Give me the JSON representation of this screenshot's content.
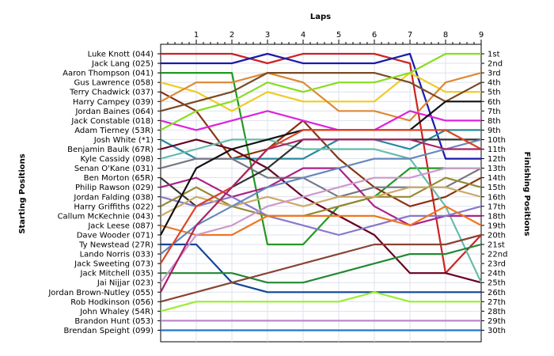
{
  "chart_data": {
    "type": "line",
    "title": "",
    "xlabel": "Laps",
    "ylabel_left": "Starting Positions",
    "ylabel_right": "Finishing Positions",
    "x": [
      0,
      1,
      2,
      3,
      4,
      5,
      6,
      7,
      8,
      9
    ],
    "x_tick_labels": [
      "1",
      "2",
      "3",
      "4",
      "5",
      "6",
      "7",
      "8",
      "9"
    ],
    "finishing_labels": [
      "1st",
      "2nd",
      "3rd",
      "4th",
      "5th",
      "6th",
      "7th",
      "8th",
      "9th",
      "10th",
      "11th",
      "12th",
      "13th",
      "14th",
      "15th",
      "16th",
      "17th",
      "18th",
      "19th",
      "20th",
      "21st",
      "22nd",
      "23rd",
      "24th",
      "25th",
      "26th",
      "27th",
      "28th",
      "29th",
      "30th"
    ],
    "grid": true,
    "series": [
      {
        "name": "Luke Knott (044)",
        "color": "#cc2222",
        "positions": [
          1,
          1,
          1,
          2,
          1,
          1,
          1,
          2,
          24,
          20
        ]
      },
      {
        "name": "Jack Lang (025)",
        "color": "#1a1aaa",
        "positions": [
          2,
          2,
          2,
          1,
          2,
          2,
          2,
          1,
          12,
          12
        ]
      },
      {
        "name": "Aaron Thompson (041)",
        "color": "#229922",
        "positions": [
          3,
          3,
          3,
          21,
          21,
          17,
          16,
          13,
          13,
          13
        ]
      },
      {
        "name": "Gus Lawrence (058)",
        "color": "#eecc22",
        "positions": [
          4,
          5,
          7,
          5,
          6,
          6,
          6,
          3,
          5,
          5
        ]
      },
      {
        "name": "Terry Chadwick (037)",
        "color": "#883311",
        "positions": [
          5,
          7,
          12,
          11,
          8,
          12,
          15,
          17,
          16,
          14
        ]
      },
      {
        "name": "Harry Campey (039)",
        "color": "#dd8833",
        "positions": [
          6,
          4,
          4,
          3,
          4,
          7,
          7,
          8,
          4,
          3
        ]
      },
      {
        "name": "Jordan Baines (064)",
        "color": "#7a4a22",
        "positions": [
          7,
          6,
          5,
          3,
          3,
          3,
          3,
          4,
          6,
          4
        ]
      },
      {
        "name": "Jack Constable (018)",
        "color": "#dd22dd",
        "positions": [
          8,
          9,
          8,
          7,
          8,
          9,
          9,
          7,
          8,
          8
        ]
      },
      {
        "name": "Adam Tierney (53R)",
        "color": "#88dd22",
        "positions": [
          9,
          7,
          6,
          4,
          5,
          4,
          4,
          3,
          1,
          1
        ]
      },
      {
        "name": "Josh White (*1)",
        "color": "#2a8aa0",
        "positions": [
          10,
          12,
          12,
          12,
          12,
          10,
          10,
          11,
          9,
          9
        ]
      },
      {
        "name": "Benjamin Baulk (67R)",
        "color": "#660022",
        "positions": [
          11,
          10,
          11,
          13,
          16,
          18,
          20,
          24,
          24,
          25
        ]
      },
      {
        "name": "Kyle Cassidy (098)",
        "color": "#66bbaa",
        "positions": [
          12,
          11,
          10,
          10,
          11,
          11,
          11,
          12,
          17,
          25
        ]
      },
      {
        "name": "Senan O'Kane (031)",
        "color": "#777788",
        "positions": [
          13,
          12,
          12,
          14,
          14,
          16,
          15,
          15,
          15,
          13
        ]
      },
      {
        "name": "Ben Morton (65R)",
        "color": "#333333",
        "positions": [
          14,
          17,
          15,
          13,
          10,
          10,
          10,
          10,
          10,
          10
        ]
      },
      {
        "name": "Philip Rawson (029)",
        "color": "#aa2288",
        "positions": [
          15,
          14,
          16,
          15,
          13,
          13,
          17,
          19,
          18,
          18
        ]
      },
      {
        "name": "Jordan Falding (038)",
        "color": "#8877cc",
        "positions": [
          16,
          17,
          16,
          18,
          19,
          20,
          19,
          18,
          18,
          17
        ]
      },
      {
        "name": "Harry Griffiths (022)",
        "color": "#998833",
        "positions": [
          17,
          15,
          17,
          18,
          18,
          17,
          16,
          16,
          14,
          15
        ]
      },
      {
        "name": "Callum McKechnie (043)",
        "color": "#ccaa66",
        "positions": [
          18,
          16,
          17,
          16,
          17,
          16,
          16,
          15,
          15,
          16
        ]
      },
      {
        "name": "Jack Leese (087)",
        "color": "#ee7722",
        "positions": [
          19,
          20,
          20,
          18,
          18,
          18,
          18,
          19,
          17,
          19
        ]
      },
      {
        "name": "Dave Wooder (071)",
        "color": "#111111",
        "positions": [
          20,
          13,
          11,
          10,
          9,
          9,
          9,
          9,
          6,
          6
        ]
      },
      {
        "name": "Ty Newstead (27R)",
        "color": "#114499",
        "positions": [
          21,
          21,
          25,
          26,
          26,
          26,
          26,
          26,
          26,
          26
        ]
      },
      {
        "name": "Lando Norris (033)",
        "color": "#6688bb",
        "positions": [
          22,
          19,
          17,
          15,
          14,
          13,
          12,
          12,
          11,
          10
        ]
      },
      {
        "name": "Jack Sweeting (073)",
        "color": "#dd4422",
        "positions": [
          23,
          17,
          15,
          11,
          9,
          9,
          9,
          9,
          9,
          11
        ]
      },
      {
        "name": "Jack Mitchell (035)",
        "color": "#228833",
        "positions": [
          24,
          24,
          24,
          25,
          25,
          24,
          23,
          22,
          22,
          21
        ]
      },
      {
        "name": "Jai Nijjar (023)",
        "color": "#cc99cc",
        "positions": [
          25,
          20,
          19,
          17,
          16,
          15,
          14,
          14,
          13,
          13
        ]
      },
      {
        "name": "Jordan Brown-Nutley (055)",
        "color": "#aa2266",
        "positions": [
          26,
          19,
          15,
          11,
          10,
          10,
          10,
          10,
          11,
          11
        ]
      },
      {
        "name": "Rob Hodkinson (056)",
        "color": "#884433",
        "positions": [
          27,
          26,
          25,
          24,
          23,
          22,
          21,
          21,
          21,
          20
        ]
      },
      {
        "name": "John Whaley (54R)",
        "color": "#99ee33",
        "positions": [
          28,
          27,
          27,
          27,
          27,
          27,
          26,
          27,
          27,
          27
        ]
      },
      {
        "name": "Brandon Hunt (053)",
        "color": "#bb88cc",
        "positions": [
          29,
          29,
          29,
          29,
          29,
          29,
          29,
          29,
          29,
          29
        ]
      },
      {
        "name": "Brendan Speight (099)",
        "color": "#2277cc",
        "positions": [
          30,
          30,
          30,
          30,
          30,
          30,
          30,
          30,
          30,
          30
        ]
      }
    ]
  }
}
